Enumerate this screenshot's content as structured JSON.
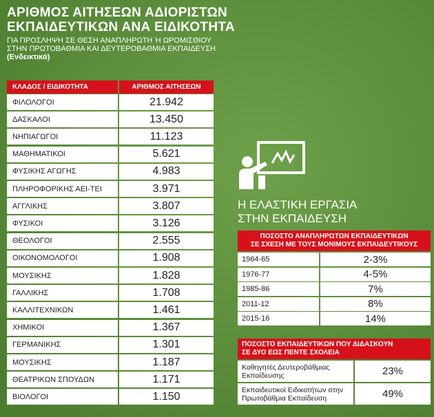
{
  "header": {
    "title": [
      "ΑΡΙΘΜΟΣ ΑΙΤΗΣΕΩΝ ΑΔΙΟΡΙΣΤΩΝ",
      "ΕΚΠΑΙΔΕΥΤΙΚΩΝ ΑΝΑ ΕΙΔΙΚΟΤΗΤΑ"
    ],
    "subtitle": [
      "ΓΙΑ ΠΡΟΣΛΗΨΗ ΣΕ ΘΕΣΗ ΑΝΑΠΛΗΡΩΤΗ Ή ΩΡΟΜΙΣΘΙΟΥ",
      "ΣΤΗΝ ΠΡΩΤΟΒΑΘΜΙΑ ΚΑΙ ΔΕΥΤΕΡΟΒΑΘΜΙΑ ΕΚΠΑΙΔΕΥΣΗ",
      "(Ενδεικτικά)"
    ]
  },
  "table": {
    "columns": [
      "ΚΛΑΔΟΣ / ΕΙΔΙΚΟΤΗΤΑ",
      "ΑΡΙΘΜΟΣ ΑΙΤΗΣΕΩΝ"
    ],
    "rows": [
      [
        "ΦΙΛΟΛΟΓΟΙ",
        "21.942"
      ],
      [
        "ΔΑΣΚΑΛΟΙ",
        "13.450"
      ],
      [
        "ΝΗΠΙΑΓΩΓΟΙ",
        "11.123"
      ],
      [
        "ΜΑΘΗΜΑΤΙΚΟΙ",
        "5.621"
      ],
      [
        "ΦΥΣΙΚΗΣ ΑΓΩΓΗΣ",
        "4.983"
      ],
      [
        "ΠΛΗΡΟΦΟΡΙΚΗΣ ΑΕΙ-ΤΕΙ",
        "3.971"
      ],
      [
        "ΑΓΓΛΙΚΗΣ",
        "3.807"
      ],
      [
        "ΦΥΣΙΚΟΙ",
        "3.126"
      ],
      [
        "ΘΕΟΛΟΓΟΙ",
        "2.555"
      ],
      [
        "ΟΙΚΟΝΟΜΟΛΟΓΟΙ",
        "1.908"
      ],
      [
        "ΜΟΥΣΙΚΗΣ",
        "1.828"
      ],
      [
        "ΓΑΛΛΙΚΗΣ",
        "1.708"
      ],
      [
        "ΚΑΛΛΙΤΕΧΝΙΚΩΝ",
        "1.461"
      ],
      [
        "ΧΗΜΙΚΟΙ",
        "1.367"
      ],
      [
        "ΓΕΡΜΑΝΙΚΗΣ",
        "1.301"
      ],
      [
        "ΜΟΥΣΙΚΗΣ",
        "1.187"
      ],
      [
        "ΘΕΑΤΡΙΚΩΝ ΣΠΟΥΔΩΝ",
        "1.171"
      ],
      [
        "ΒΙΟΛΟΓΟΙ",
        "1.150"
      ]
    ]
  },
  "section": {
    "title": [
      "Η ΕΛΑΣΤΙΚΗ ΕΡΓΑΣΙΑ",
      "ΣΤΗΝ ΕΚΠΑΙΔΕΥΣΗ"
    ],
    "table1": {
      "header": [
        "ΠΟΣΟΣΤΟ ΑΝΑΠΛΗΡΩΤΩΝ ΕΚΠΑΙΔΕΥΤΙΚΩΝ",
        "ΣΕ ΣΧΕΣΗ ΜΕ ΤΟΥΣ ΜΟΝΙΜΟΥΣ ΕΚΠΑΙΔΕΥΤΙΚΟΥΣ"
      ],
      "rows": [
        [
          "1964-65",
          "2-3%"
        ],
        [
          "1976-77",
          "4-5%"
        ],
        [
          "1985-86",
          "7%"
        ],
        [
          "2011-12",
          "8%"
        ],
        [
          "2015-16",
          "14%"
        ]
      ]
    },
    "table2": {
      "header": [
        "ΠΟΣΟΣΤΟ ΕΚΠΑΙΔΕΥΤΙΚΩΝ ΠΟΥ ΔΙΔΑΣΚΟΥΝ",
        "ΣΕ ΔΥΟ ΕΩΣ ΠΕΝΤΕ ΣΧΟΛΕΙΑ"
      ],
      "rows": [
        [
          "Καθηγητές Δευτεροβάθμιας Εκπαίδευσης",
          "23%"
        ],
        [
          "Εκπαιδευτικοί Ειδικοτήτων στην Πρωτοβάθμια Εκπαίδευση",
          "49%"
        ]
      ]
    }
  }
}
